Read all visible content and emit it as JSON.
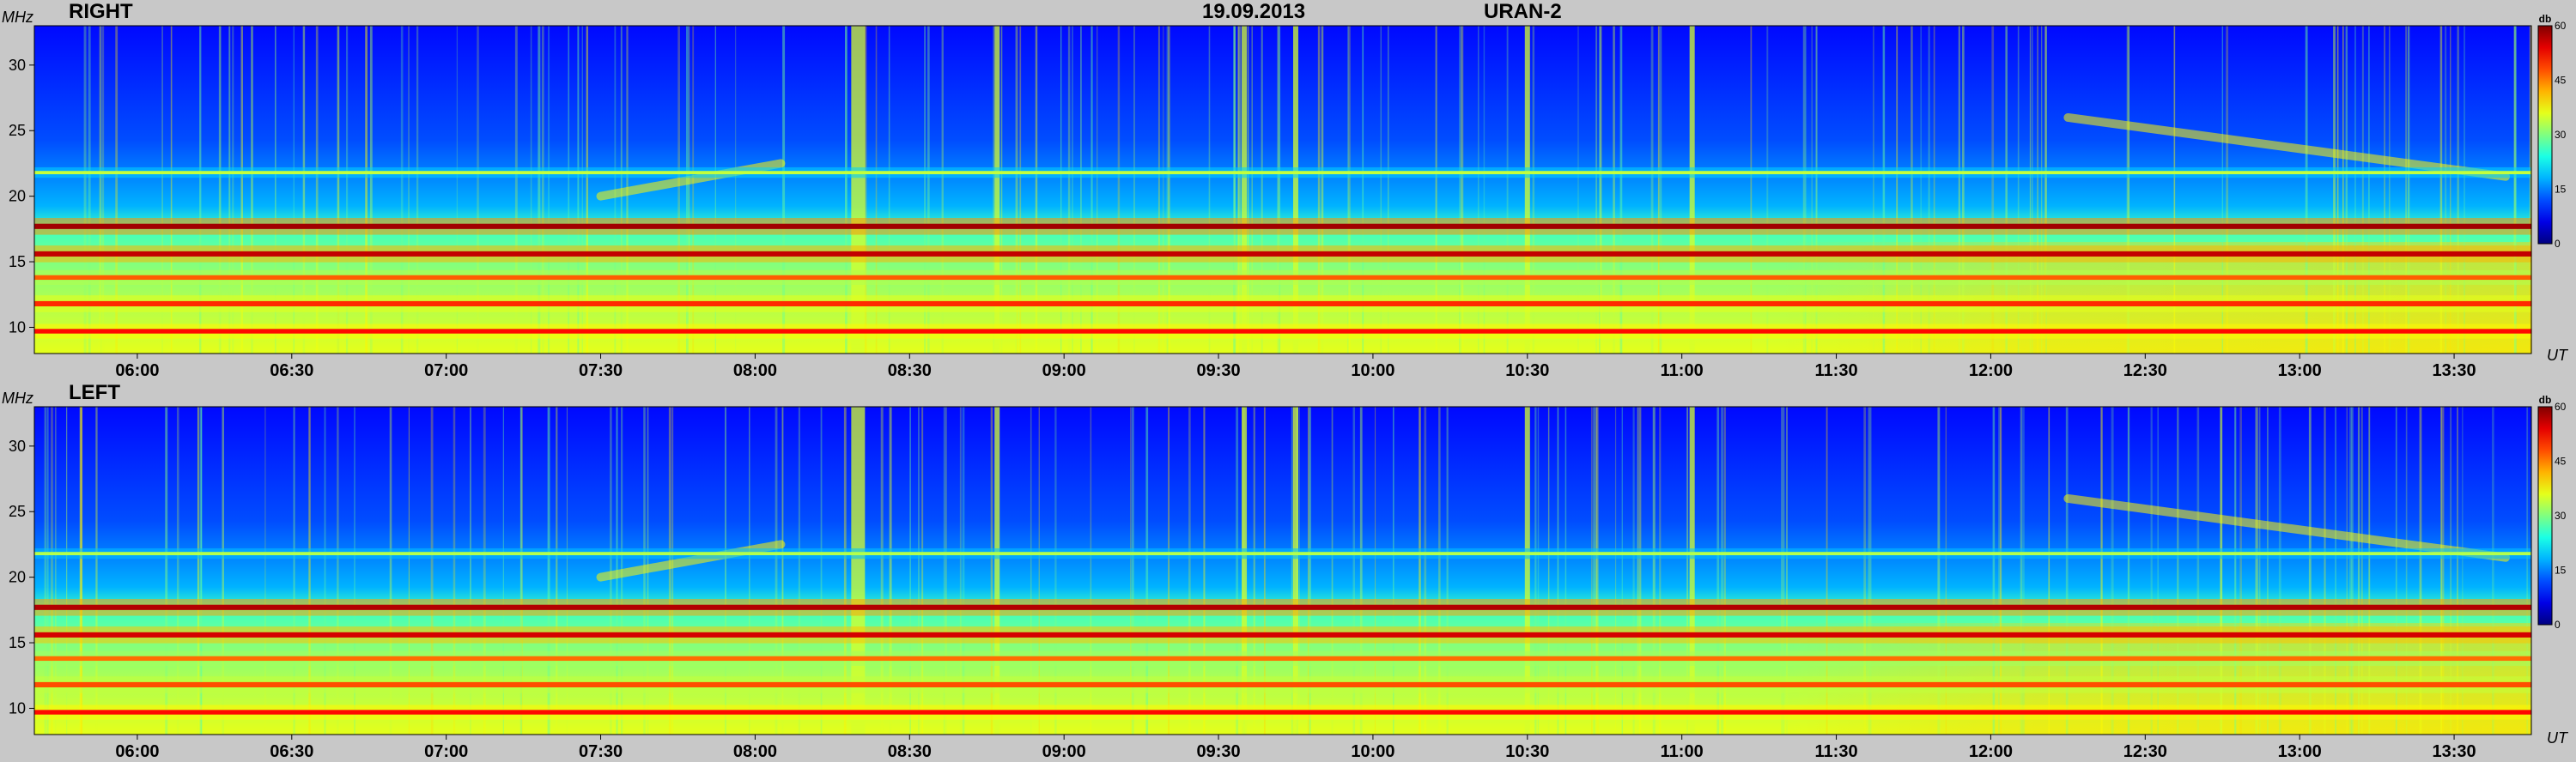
{
  "header": {
    "date": "19.09.2013",
    "instrument": "URAN-2"
  },
  "units": {
    "y": "MHz",
    "x": "UT",
    "colorbar": "db"
  },
  "colors": {
    "background": "#c8c8c8"
  },
  "chart_data": [
    {
      "type": "heatmap",
      "title": "RIGHT",
      "xlabel": "UT",
      "ylabel": "MHz",
      "x_ticks": [
        "06:00",
        "06:30",
        "07:00",
        "07:30",
        "08:00",
        "08:30",
        "09:00",
        "09:30",
        "10:00",
        "10:30",
        "11:00",
        "11:30",
        "12:00",
        "12:30",
        "13:00",
        "13:30"
      ],
      "y_ticks": [
        10,
        15,
        20,
        25,
        30
      ],
      "ylim": [
        8,
        33
      ],
      "xlim": [
        "05:40",
        "13:45"
      ],
      "colorbar": {
        "label": "db",
        "ticks": [
          0,
          15,
          30,
          45,
          60
        ],
        "range": [
          0,
          60
        ],
        "colormap": "jet"
      },
      "bands_mhz": [
        {
          "freq": 9.7,
          "level": 52,
          "width": 0.35
        },
        {
          "freq": 11.8,
          "level": 50,
          "width": 0.4
        },
        {
          "freq": 13.8,
          "level": 47,
          "width": 0.35
        },
        {
          "freq": 15.6,
          "level": 56,
          "width": 0.4
        },
        {
          "freq": 17.7,
          "level": 58,
          "width": 0.4
        },
        {
          "freq": 21.8,
          "level": 34,
          "width": 0.25
        }
      ],
      "vertical_bursts_ut": [
        "08:20",
        "08:47",
        "09:35",
        "09:45",
        "10:30",
        "11:02"
      ],
      "drifting_features": [
        {
          "start_ut": "07:30",
          "end_ut": "08:05",
          "freq_start": 20,
          "freq_end": 22.5
        },
        {
          "start_ut": "12:15",
          "end_ut": "13:40",
          "freq_start": 26,
          "freq_end": 21.5
        }
      ]
    },
    {
      "type": "heatmap",
      "title": "LEFT",
      "xlabel": "UT",
      "ylabel": "MHz",
      "x_ticks": [
        "06:00",
        "06:30",
        "07:00",
        "07:30",
        "08:00",
        "08:30",
        "09:00",
        "09:30",
        "10:00",
        "10:30",
        "11:00",
        "11:30",
        "12:00",
        "12:30",
        "13:00",
        "13:30"
      ],
      "y_ticks": [
        10,
        15,
        20,
        25,
        30
      ],
      "ylim": [
        8,
        33
      ],
      "xlim": [
        "05:40",
        "13:45"
      ],
      "colorbar": {
        "label": "db",
        "ticks": [
          0,
          15,
          30,
          45,
          60
        ],
        "range": [
          0,
          60
        ],
        "colormap": "jet"
      },
      "bands_mhz": [
        {
          "freq": 9.7,
          "level": 52,
          "width": 0.35
        },
        {
          "freq": 11.8,
          "level": 48,
          "width": 0.4
        },
        {
          "freq": 13.8,
          "level": 46,
          "width": 0.35
        },
        {
          "freq": 15.6,
          "level": 55,
          "width": 0.4
        },
        {
          "freq": 17.7,
          "level": 57,
          "width": 0.4
        },
        {
          "freq": 21.8,
          "level": 33,
          "width": 0.25
        }
      ],
      "vertical_bursts_ut": [
        "08:20",
        "08:47",
        "09:35",
        "09:45",
        "10:30",
        "11:02"
      ],
      "drifting_features": [
        {
          "start_ut": "07:30",
          "end_ut": "08:05",
          "freq_start": 20,
          "freq_end": 22.5
        },
        {
          "start_ut": "12:15",
          "end_ut": "13:40",
          "freq_start": 26,
          "freq_end": 21.5
        }
      ]
    }
  ]
}
